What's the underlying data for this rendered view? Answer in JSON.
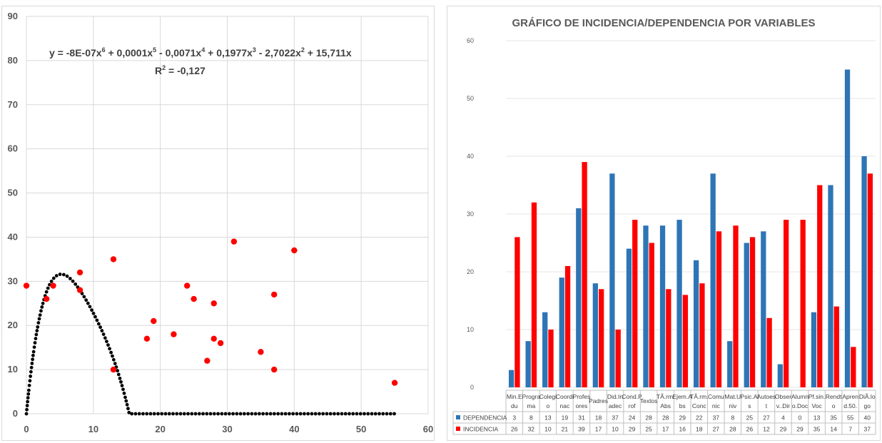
{
  "chart_data": [
    {
      "type": "scatter",
      "title": "",
      "xlabel": "",
      "ylabel": "",
      "xlim": [
        0,
        60
      ],
      "ylim": [
        0,
        90
      ],
      "x_ticks": [
        "0",
        "10",
        "20",
        "30",
        "40",
        "50",
        "60"
      ],
      "y_ticks": [
        "0",
        "10",
        "20",
        "30",
        "40",
        "50",
        "60",
        "70",
        "80",
        "90"
      ],
      "grid": true,
      "points": [
        {
          "x": 3,
          "y": 26
        },
        {
          "x": 8,
          "y": 32
        },
        {
          "x": 13,
          "y": 10
        },
        {
          "x": 19,
          "y": 21
        },
        {
          "x": 31,
          "y": 39
        },
        {
          "x": 18,
          "y": 17
        },
        {
          "x": 37,
          "y": 10
        },
        {
          "x": 24,
          "y": 29
        },
        {
          "x": 28,
          "y": 25
        },
        {
          "x": 28,
          "y": 17
        },
        {
          "x": 29,
          "y": 16
        },
        {
          "x": 22,
          "y": 18
        },
        {
          "x": 37,
          "y": 27
        },
        {
          "x": 8,
          "y": 28
        },
        {
          "x": 25,
          "y": 26
        },
        {
          "x": 27,
          "y": 12
        },
        {
          "x": 4,
          "y": 29
        },
        {
          "x": 0,
          "y": 29
        },
        {
          "x": 13,
          "y": 35
        },
        {
          "x": 35,
          "y": 14
        },
        {
          "x": 55,
          "y": 7
        },
        {
          "x": 40,
          "y": 37
        }
      ],
      "trendline": {
        "type": "polynomial",
        "coefficients_desc": [
          -8e-07,
          0.0001,
          -0.0071,
          0.1977,
          -2.7022,
          15.711,
          0
        ],
        "equation_lines": [
          "y = -8E-07x",
          "6",
          " + 0,0001x",
          "5",
          " - 0,0071x",
          "4",
          " + 0,1977x",
          "3",
          " - 2,7022x",
          "2",
          " + 15,711x"
        ],
        "r2_label": "R",
        "r2_sup": "2",
        "r2_value": " = -0,127"
      },
      "colors": {
        "points": "#ff0000",
        "trendline": "#000000",
        "grid": "#d9d9d9"
      }
    },
    {
      "type": "bar",
      "title": "GRÁFICO DE INCIDENCIA/DEPENDENCIA POR VARIABLES",
      "ylim": [
        0,
        60
      ],
      "y_ticks": [
        "0",
        "10",
        "20",
        "30",
        "40",
        "50",
        "60"
      ],
      "categories": [
        [
          "Min.E",
          "du"
        ],
        [
          "Progra",
          "ma"
        ],
        [
          "Colegi",
          "o"
        ],
        [
          "Coordi",
          "nac"
        ],
        [
          "Profes",
          "ores"
        ],
        [
          "Padres",
          ""
        ],
        [
          "Did.In",
          "adec"
        ],
        [
          "Cond.P",
          "rof"
        ],
        [
          "Textos",
          ""
        ],
        [
          "TÃ.rm.",
          "Abs"
        ],
        [
          "Ejem.A",
          "bs"
        ],
        [
          "TÃ.rm.",
          "Conc"
        ],
        [
          "Comu",
          "nic"
        ],
        [
          "Mat.U",
          "niv"
        ],
        [
          "Psic.Al",
          "s"
        ],
        [
          "Autoes",
          "t"
        ],
        [
          "Obser",
          "v..Dir"
        ],
        [
          "Alumn",
          "o.Doc"
        ],
        [
          "Pf.sin.",
          "Voc"
        ],
        [
          "Rendt",
          "o"
        ],
        [
          "Apren",
          "d.50."
        ],
        [
          "DiÃ.lo",
          "go"
        ]
      ],
      "series": [
        {
          "name": "DEPENDENCIA",
          "color": "#2e75b6",
          "values": [
            3,
            8,
            13,
            19,
            31,
            18,
            37,
            24,
            28,
            28,
            29,
            22,
            37,
            8,
            25,
            27,
            4,
            0,
            13,
            35,
            55,
            40
          ]
        },
        {
          "name": "INCIDENCIA",
          "color": "#ff0000",
          "values": [
            26,
            32,
            10,
            21,
            39,
            17,
            10,
            29,
            25,
            17,
            16,
            18,
            27,
            28,
            26,
            12,
            29,
            29,
            35,
            14,
            7,
            37
          ]
        }
      ],
      "legend": "data-table-below"
    }
  ]
}
